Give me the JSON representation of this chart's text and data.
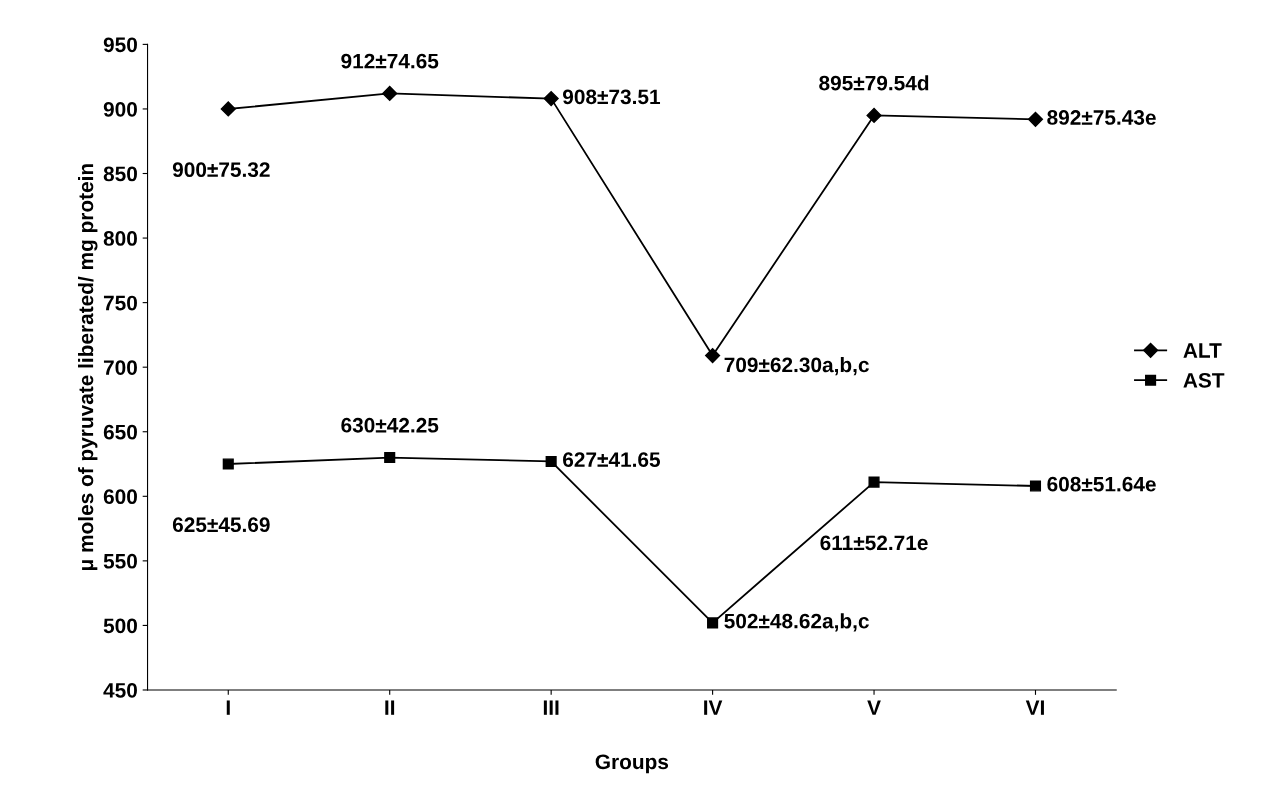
{
  "chart_data": {
    "type": "line",
    "xlabel": "Groups",
    "ylabel": "μ moles of pyruvate liberated/ mg protein",
    "categories": [
      "I",
      "II",
      "III",
      "IV",
      "V",
      "VI"
    ],
    "series": [
      {
        "name": "ALT",
        "color": "#000000",
        "marker": "diamond",
        "values": [
          900,
          912,
          908,
          709,
          895,
          892
        ],
        "value_labels": [
          "900±75.32",
          "912±74.65",
          "908±73.51",
          "709±62.30a,b,c",
          "895±79.54d",
          "892±75.43e"
        ]
      },
      {
        "name": "AST",
        "color": "#000000",
        "marker": "square",
        "values": [
          625,
          630,
          627,
          502,
          611,
          608
        ],
        "value_labels": [
          "625±45.69",
          "630±42.25",
          "627±41.65",
          "502±48.62a,b,c",
          "611±52.71e",
          "608±51.64e"
        ]
      }
    ],
    "ylim": [
      450,
      950
    ],
    "yticks": [
      450,
      500,
      550,
      600,
      650,
      700,
      750,
      800,
      850,
      900,
      950
    ],
    "grid": false,
    "legend": "right",
    "line_style": "solid"
  }
}
